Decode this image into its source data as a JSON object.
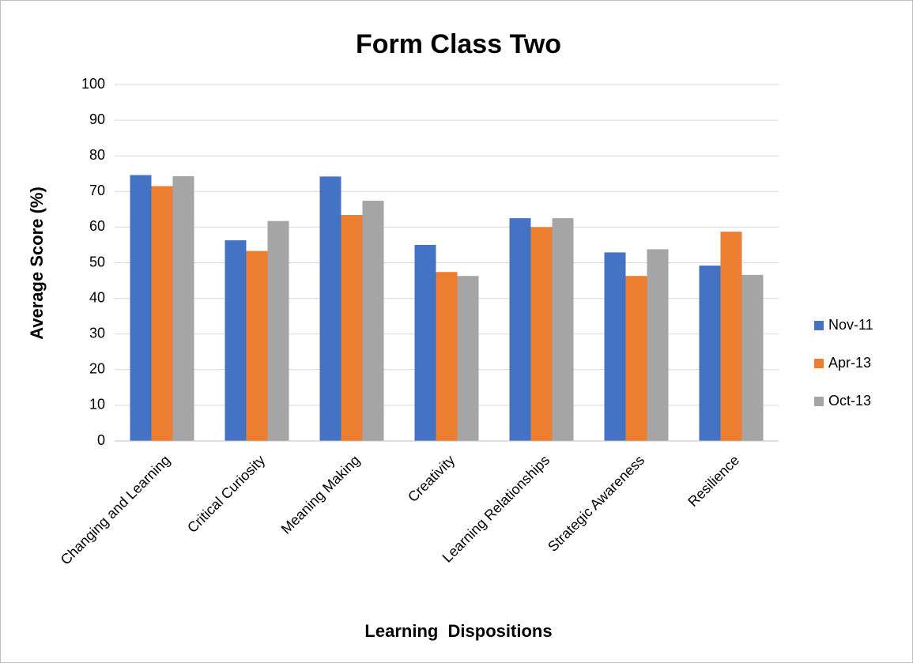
{
  "chart_data": {
    "type": "bar",
    "title": "Form Class Two",
    "xlabel": "Learning  Dispositions",
    "ylabel": "Average Score (%)",
    "categories": [
      "Changing and Learning",
      "Critical Curiosity",
      "Meaning Making",
      "Creativity",
      "Learning Relationships",
      "Strategic Awareness",
      "Resilience"
    ],
    "series": [
      {
        "name": "Nov-11",
        "color": "#4472c4",
        "values": [
          74.6,
          56.3,
          74.2,
          55.0,
          62.5,
          52.9,
          49.2
        ]
      },
      {
        "name": "Apr-13",
        "color": "#ed7d31",
        "values": [
          71.5,
          53.3,
          63.4,
          47.4,
          60.0,
          46.3,
          58.7
        ]
      },
      {
        "name": "Oct-13",
        "color": "#a5a5a5",
        "values": [
          74.3,
          61.7,
          67.4,
          46.3,
          62.5,
          53.8,
          46.6
        ]
      }
    ],
    "ylim": [
      0,
      100
    ],
    "yticks": [
      0,
      10,
      20,
      30,
      40,
      50,
      60,
      70,
      80,
      90,
      100
    ],
    "grid": true,
    "legend": "right"
  }
}
